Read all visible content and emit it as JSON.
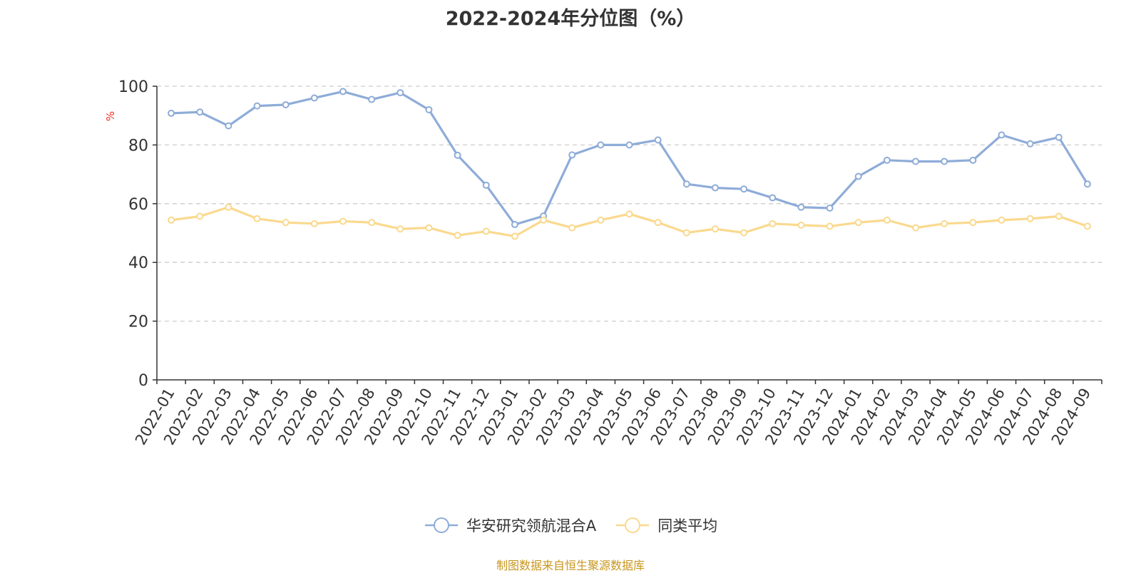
{
  "chart_data": {
    "type": "line",
    "title": "2022-2024年分位图（%）",
    "ylabel": "%",
    "ylim": [
      0,
      100
    ],
    "yticks": [
      0,
      20,
      40,
      60,
      80,
      100
    ],
    "grid": true,
    "legend_position": "bottom-center",
    "categories": [
      "2022-01",
      "2022-02",
      "2022-03",
      "2022-04",
      "2022-05",
      "2022-06",
      "2022-07",
      "2022-08",
      "2022-09",
      "2022-10",
      "2022-11",
      "2022-12",
      "2023-01",
      "2023-02",
      "2023-03",
      "2023-04",
      "2023-05",
      "2023-06",
      "2023-07",
      "2023-08",
      "2023-09",
      "2023-10",
      "2023-11",
      "2023-12",
      "2024-01",
      "2024-02",
      "2024-03",
      "2024-04",
      "2024-05",
      "2024-06",
      "2024-07",
      "2024-08",
      "2024-09"
    ],
    "series": [
      {
        "name": "华安研究领航混合A",
        "color": "#8eacd8",
        "values": [
          90.8,
          91.2,
          86.5,
          93.3,
          93.7,
          96.0,
          98.2,
          95.5,
          97.8,
          92.0,
          76.5,
          66.3,
          52.9,
          55.8,
          76.6,
          80.0,
          80.0,
          81.7,
          66.7,
          65.4,
          65.0,
          62.0,
          58.8,
          58.5,
          69.3,
          74.8,
          74.4,
          74.4,
          74.8,
          83.4,
          80.4,
          82.6,
          66.7
        ]
      },
      {
        "name": "同类平均",
        "color": "#fad98e",
        "values": [
          54.4,
          55.7,
          58.8,
          54.9,
          53.6,
          53.2,
          54.0,
          53.6,
          51.4,
          51.8,
          49.2,
          50.6,
          48.9,
          54.4,
          51.8,
          54.4,
          56.5,
          53.6,
          50.1,
          51.4,
          50.1,
          53.2,
          52.7,
          52.3,
          53.6,
          54.4,
          51.8,
          53.2,
          53.6,
          54.4,
          54.9,
          55.7,
          52.3
        ]
      }
    ]
  },
  "footer": {
    "source": "制图数据来自恒生聚源数据库"
  }
}
